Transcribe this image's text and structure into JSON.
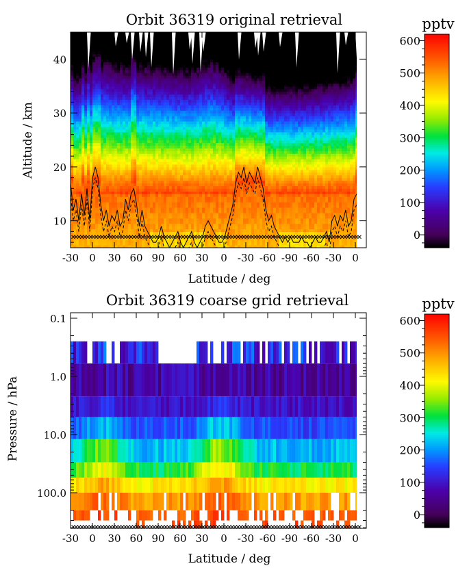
{
  "chart_data": [
    {
      "type": "heatmap",
      "title": "Orbit 36319 original retrieval",
      "xlabel": "Latitude / deg",
      "ylabel": "Altitude / km",
      "x_tick_labels": [
        "-30",
        "0",
        "30",
        "60",
        "90",
        "60",
        "30",
        "0",
        "-30",
        "-60",
        "-90",
        "-60",
        "-30",
        "0"
      ],
      "y_ticks": [
        10,
        20,
        30,
        40
      ],
      "ylim": [
        5,
        45
      ],
      "colorbar": {
        "label": "pptv",
        "ticks": [
          0,
          100,
          200,
          300,
          400,
          500,
          600
        ],
        "range": [
          -40,
          620
        ]
      },
      "tropopause_solid_km": [
        17,
        12,
        14,
        10,
        15,
        11,
        16,
        10,
        18,
        20,
        18,
        13,
        10,
        12,
        9,
        11,
        10,
        12,
        9,
        10,
        14,
        12,
        15,
        16,
        13,
        9,
        12,
        9,
        8,
        7,
        6,
        6,
        7,
        9,
        7,
        6,
        5,
        6,
        7,
        8,
        6,
        5,
        6,
        7,
        8,
        6,
        5,
        6,
        7,
        9,
        10,
        9,
        8,
        7,
        6,
        6,
        7,
        9,
        11,
        13,
        17,
        19,
        18,
        20,
        17,
        19,
        18,
        17,
        20,
        18,
        16,
        12,
        10,
        11,
        9,
        8,
        7,
        6,
        7,
        6,
        7,
        6,
        6,
        6,
        7,
        6,
        6,
        5,
        6,
        7,
        6,
        6,
        7,
        8,
        6,
        10,
        11,
        9,
        11,
        10,
        12,
        9,
        10,
        14,
        15
      ],
      "tropopause_dashed_km": [
        15,
        10,
        12,
        8,
        13,
        9,
        14,
        8,
        16,
        18,
        16,
        11,
        8,
        10,
        7,
        9,
        8,
        10,
        7,
        8,
        12,
        10,
        13,
        14,
        11,
        7,
        10,
        7,
        6,
        5,
        4,
        4,
        5,
        7,
        5,
        4,
        3,
        4,
        5,
        6,
        4,
        3,
        4,
        5,
        6,
        4,
        3,
        4,
        5,
        7,
        8,
        7,
        6,
        5,
        4,
        4,
        5,
        7,
        9,
        11,
        15,
        17,
        16,
        18,
        15,
        17,
        16,
        15,
        18,
        16,
        14,
        10,
        8,
        9,
        7,
        6,
        5,
        4,
        5,
        4,
        5,
        4,
        4,
        4,
        5,
        4,
        4,
        3,
        4,
        5,
        4,
        4,
        5,
        6,
        4,
        8,
        9,
        7,
        9,
        8,
        10,
        7,
        8,
        12,
        13
      ],
      "marker_row_km": 7
    },
    {
      "type": "heatmap",
      "title": "Orbit 36319 coarse grid retrieval",
      "xlabel": "Latitude / deg",
      "ylabel": "Pressure / hPa",
      "x_tick_labels": [
        "-30",
        "0",
        "30",
        "60",
        "90",
        "60",
        "30",
        "0",
        "-30",
        "-60",
        "-90",
        "-60",
        "-30",
        "0"
      ],
      "y_ticks": [
        "0.1",
        "1.0",
        "10.0",
        "100.0"
      ],
      "y_scale": "log",
      "colorbar": {
        "label": "pptv",
        "ticks": [
          0,
          100,
          200,
          300,
          400,
          500,
          600
        ],
        "range": [
          -40,
          620
        ]
      },
      "levels_hPa": [
        0.3,
        1.0,
        3.0,
        8.0,
        20,
        40,
        70,
        150,
        250,
        350
      ],
      "marker_row": "bottom"
    }
  ]
}
